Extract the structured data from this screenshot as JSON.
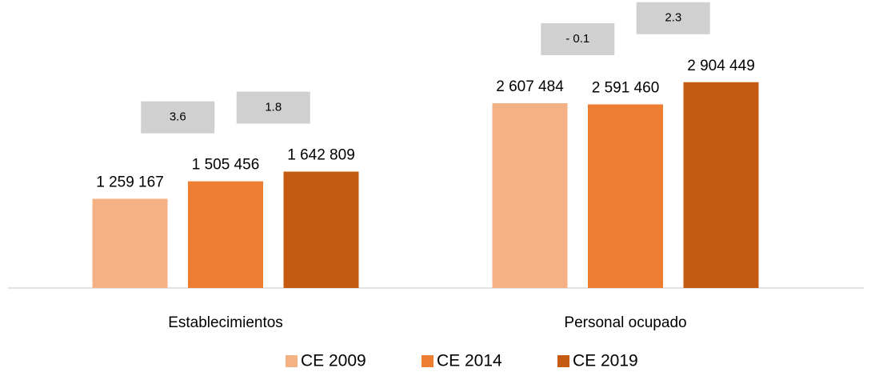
{
  "chart_data": {
    "type": "bar",
    "categories": [
      "Establecimientos",
      "Personal ocupado"
    ],
    "series": [
      {
        "name": "CE 2009",
        "color": "#f4b183",
        "values": [
          1259167,
          2607484
        ],
        "value_labels": [
          "1 259 167",
          "2 607 484"
        ]
      },
      {
        "name": "CE 2014",
        "color": "#ed7d31",
        "values": [
          1505456,
          2591460
        ],
        "value_labels": [
          "1 505 456",
          "2 591 460"
        ]
      },
      {
        "name": "CE 2019",
        "color": "#c55a11",
        "values": [
          1642809,
          2904449
        ],
        "value_labels": [
          "1 642 809",
          "2 904 449"
        ]
      }
    ],
    "annotations": [
      "3.6",
      "1.8",
      "- 0.1",
      "2.3"
    ],
    "ylim": [
      0,
      3500000
    ]
  }
}
